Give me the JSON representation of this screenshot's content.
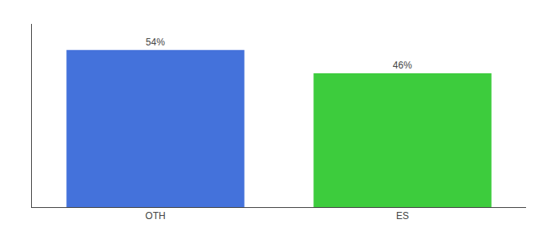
{
  "chart_data": {
    "type": "bar",
    "categories": [
      "OTH",
      "ES"
    ],
    "values": [
      54,
      46
    ],
    "value_labels": [
      "54%",
      "46%"
    ],
    "data_labels": true,
    "colors": [
      "#4472db",
      "#3dcc3d"
    ],
    "ylim": [
      0,
      63
    ],
    "grid": false,
    "tick_labels": "x"
  }
}
